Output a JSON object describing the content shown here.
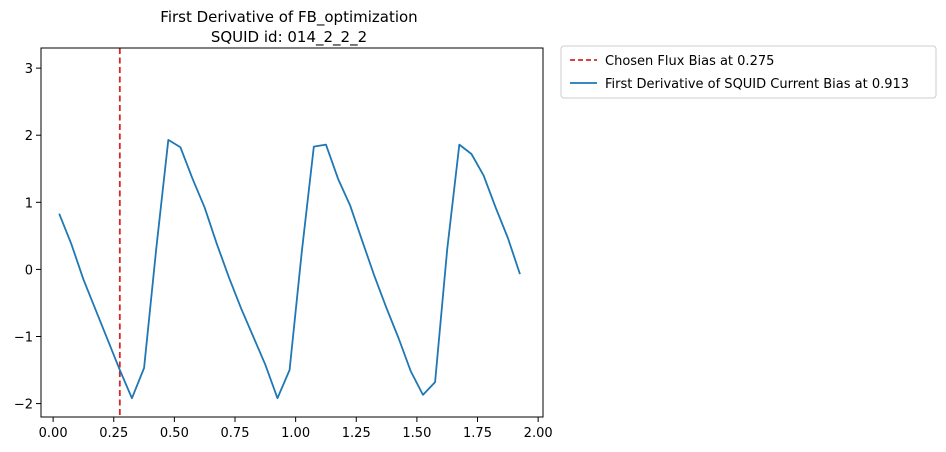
{
  "chart_data": {
    "type": "line",
    "title": "First Derivative of FB_optimization",
    "subtitle": "SQUID id: 014_2_2_2",
    "xlabel": "",
    "ylabel": "",
    "xlim": [
      -0.05,
      2.02
    ],
    "ylim": [
      -2.2,
      3.3
    ],
    "grid": false,
    "legend_placement": "outside-top-right",
    "x_ticks": [
      0.0,
      0.25,
      0.5,
      0.75,
      1.0,
      1.25,
      1.5,
      1.75,
      2.0
    ],
    "x_tick_labels": [
      "0.00",
      "0.25",
      "0.50",
      "0.75",
      "1.00",
      "1.25",
      "1.50",
      "1.75",
      "2.00"
    ],
    "y_ticks": [
      -2,
      -1,
      0,
      1,
      2,
      3
    ],
    "y_tick_labels": [
      "−2",
      "−1",
      "0",
      "1",
      "2",
      "3"
    ],
    "vline": {
      "name": "Chosen Flux Bias at 0.275",
      "x": 0.275,
      "color": "#d62728",
      "style": "dashed"
    },
    "series": [
      {
        "name": "First Derivative of SQUID Current Bias at 0.913",
        "color": "#1f77b4",
        "x": [
          0.025,
          0.075,
          0.125,
          0.175,
          0.225,
          0.275,
          0.325,
          0.375,
          0.425,
          0.475,
          0.525,
          0.575,
          0.625,
          0.675,
          0.725,
          0.775,
          0.825,
          0.875,
          0.925,
          0.975,
          1.025,
          1.075,
          1.125,
          1.175,
          1.225,
          1.275,
          1.325,
          1.375,
          1.425,
          1.475,
          1.525,
          1.575,
          1.625,
          1.675,
          1.725,
          1.775,
          1.825,
          1.875,
          1.925
        ],
        "values": [
          0.83,
          0.38,
          -0.15,
          -0.6,
          -1.05,
          -1.5,
          -1.92,
          -1.47,
          0.3,
          1.93,
          1.82,
          1.35,
          0.92,
          0.38,
          -0.12,
          -0.58,
          -1.0,
          -1.42,
          -1.92,
          -1.5,
          0.25,
          1.83,
          1.86,
          1.35,
          0.95,
          0.42,
          -0.1,
          -0.58,
          -1.03,
          -1.52,
          -1.87,
          -1.68,
          0.3,
          1.86,
          1.72,
          1.4,
          0.92,
          0.47,
          -0.07
        ]
      }
    ]
  }
}
